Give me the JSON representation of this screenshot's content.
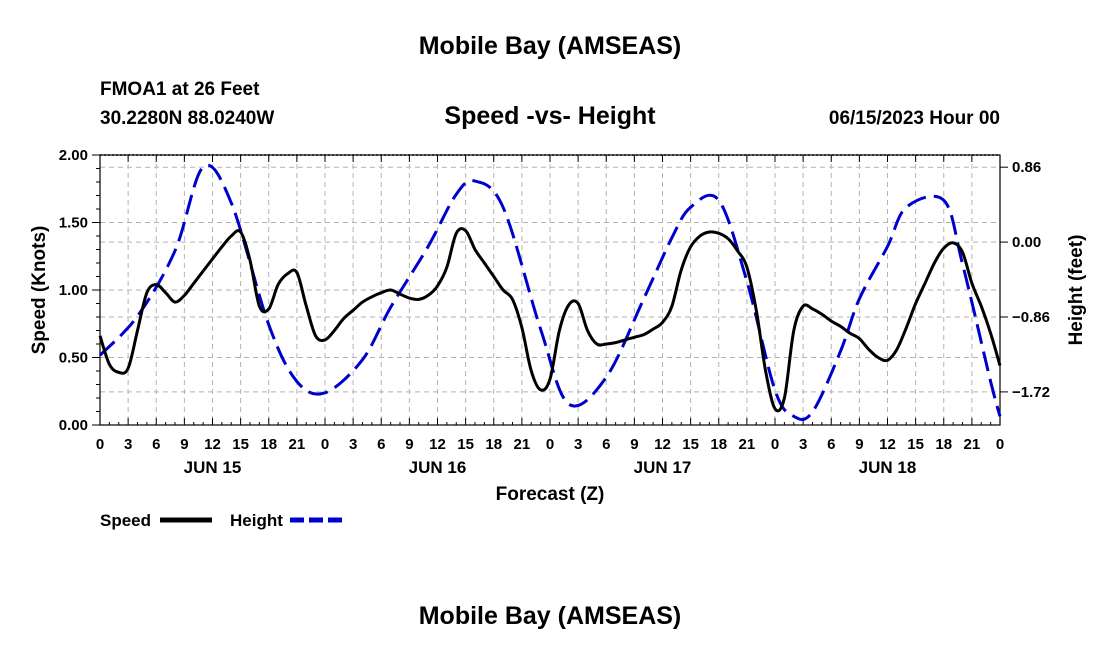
{
  "header": {
    "title": "Mobile Bay (AMSEAS)",
    "station": "FMOA1 at 26 Feet",
    "coords": "30.2280N  88.0240W",
    "date": "06/15/2023 Hour 00",
    "footer_title": "Mobile Bay (AMSEAS)"
  },
  "legend": {
    "speed_label": "Speed",
    "height_label": "Height",
    "speed_color": "#000000",
    "height_color": "#0000cc"
  },
  "chart_data": {
    "type": "line",
    "title": "Speed -vs- Height",
    "xlabel": "Forecast (Z)",
    "ylabel_left": "Speed (Knots)",
    "ylabel_right": "Height (feet)",
    "x_range_hours": [
      0,
      96
    ],
    "ylim_left": [
      0,
      2.0
    ],
    "yticks_left": [
      "0.00",
      "0.50",
      "1.00",
      "1.50",
      "2.00"
    ],
    "ylim_right": [
      -2.1,
      1.0
    ],
    "yticks_right": [
      {
        "value": 0.86,
        "label": "0.86"
      },
      {
        "value": 0.0,
        "label": "0.00"
      },
      {
        "value": -0.86,
        "label": "−0.86"
      },
      {
        "value": -1.72,
        "label": "−1.72"
      }
    ],
    "x_tick_hours": [
      0,
      3,
      6,
      9,
      12,
      15,
      18,
      21,
      24,
      27,
      30,
      33,
      36,
      39,
      42,
      45,
      48,
      51,
      54,
      57,
      60,
      63,
      66,
      69,
      72,
      75,
      78,
      81,
      84,
      87,
      90,
      93,
      96
    ],
    "x_tick_labels": [
      "0",
      "3",
      "6",
      "9",
      "12",
      "15",
      "18",
      "21",
      "0",
      "3",
      "6",
      "9",
      "12",
      "15",
      "18",
      "21",
      "0",
      "3",
      "6",
      "9",
      "12",
      "15",
      "18",
      "21",
      "0",
      "3",
      "6",
      "9",
      "12",
      "15",
      "18",
      "21",
      "0"
    ],
    "day_labels": [
      {
        "hour": 12,
        "label": "JUN 15"
      },
      {
        "hour": 36,
        "label": "JUN 16"
      },
      {
        "hour": 60,
        "label": "JUN 17"
      },
      {
        "hour": 84,
        "label": "JUN 18"
      }
    ],
    "series": [
      {
        "name": "Speed",
        "axis": "left",
        "style": "solid",
        "x": [
          0,
          1,
          2,
          3,
          4,
          5,
          6,
          7,
          8,
          9,
          10,
          11,
          12,
          13,
          14,
          15,
          16,
          17,
          18,
          19,
          20,
          21,
          22,
          23,
          24,
          25,
          26,
          27,
          28,
          29,
          30,
          31,
          32,
          33,
          34,
          35,
          36,
          37,
          38,
          39,
          40,
          41,
          42,
          43,
          44,
          45,
          46,
          47,
          48,
          49,
          50,
          51,
          52,
          53,
          54,
          55,
          56,
          57,
          58,
          59,
          60,
          61,
          62,
          63,
          64,
          65,
          66,
          67,
          68,
          69,
          70,
          71,
          72,
          73,
          74,
          75,
          76,
          77,
          78,
          79,
          80,
          81,
          82,
          83,
          84,
          85,
          86,
          87,
          88,
          89,
          90,
          91,
          92,
          93,
          94,
          95,
          96
        ],
        "values": [
          0.66,
          0.45,
          0.39,
          0.42,
          0.7,
          0.98,
          1.04,
          0.98,
          0.91,
          0.96,
          1.05,
          1.14,
          1.23,
          1.32,
          1.4,
          1.43,
          1.22,
          0.88,
          0.86,
          1.04,
          1.12,
          1.13,
          0.88,
          0.66,
          0.63,
          0.7,
          0.79,
          0.85,
          0.91,
          0.95,
          0.98,
          1.0,
          0.97,
          0.94,
          0.93,
          0.96,
          1.03,
          1.17,
          1.42,
          1.44,
          1.3,
          1.2,
          1.1,
          1.0,
          0.93,
          0.72,
          0.4,
          0.26,
          0.34,
          0.7,
          0.89,
          0.9,
          0.7,
          0.6,
          0.6,
          0.61,
          0.63,
          0.65,
          0.67,
          0.71,
          0.76,
          0.88,
          1.15,
          1.32,
          1.4,
          1.43,
          1.42,
          1.38,
          1.29,
          1.17,
          0.85,
          0.4,
          0.12,
          0.2,
          0.7,
          0.88,
          0.86,
          0.82,
          0.77,
          0.73,
          0.68,
          0.64,
          0.56,
          0.5,
          0.48,
          0.56,
          0.72,
          0.9,
          1.05,
          1.2,
          1.31,
          1.35,
          1.28,
          1.05,
          0.88,
          0.68,
          0.44
        ]
      },
      {
        "name": "Height",
        "axis": "right",
        "style": "dashed",
        "x": [
          0,
          4,
          8,
          11,
          14,
          18,
          21,
          24,
          28,
          31,
          35,
          38,
          40,
          43,
          47,
          50,
          54,
          58,
          61,
          63,
          66,
          69,
          72,
          74,
          76,
          79,
          81,
          84,
          86,
          90,
          92,
          95,
          96
        ],
        "values": [
          -1.3,
          -0.85,
          -0.1,
          0.86,
          0.45,
          -0.95,
          -1.6,
          -1.73,
          -1.35,
          -0.75,
          -0.05,
          0.55,
          0.7,
          0.4,
          -1.0,
          -1.86,
          -1.55,
          -0.65,
          0.05,
          0.4,
          0.48,
          -0.45,
          -1.7,
          -2.0,
          -1.95,
          -1.25,
          -0.65,
          -0.05,
          0.4,
          0.48,
          -0.25,
          -1.6,
          -2.0
        ]
      }
    ]
  }
}
